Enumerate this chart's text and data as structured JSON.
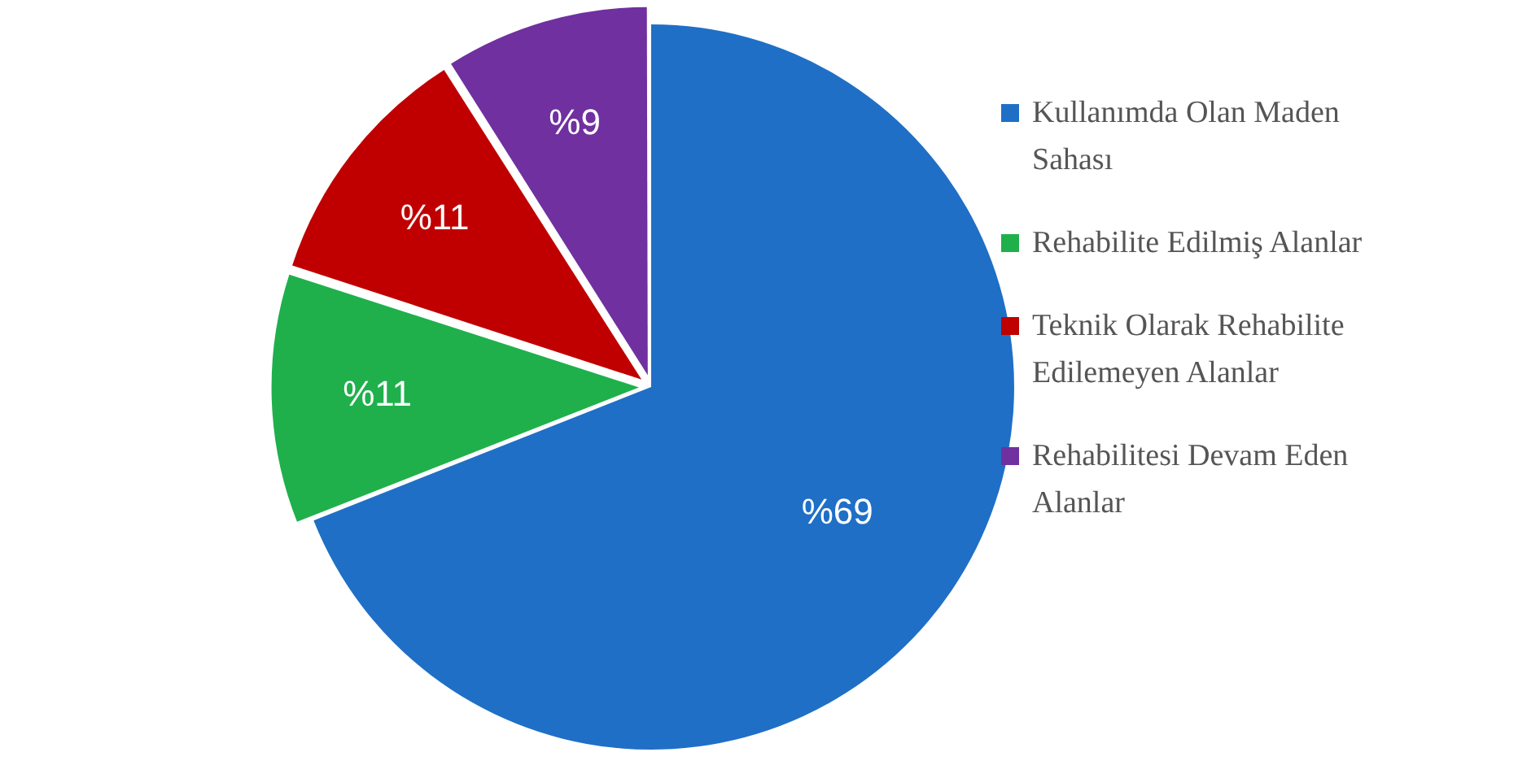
{
  "chart_data": {
    "type": "pie",
    "categories": [
      "Kullanımda Olan Maden Sahası",
      "Rehabilite Edilmiş Alanlar",
      "Teknik Olarak Rehabilite Edilemeyen Alanlar",
      "Rehabilitesi Devam Eden Alanlar"
    ],
    "values": [
      69,
      11,
      11,
      9
    ],
    "colors": [
      "#1f6fc6",
      "#1fb04c",
      "#c00000",
      "#7030a0"
    ],
    "value_labels": [
      "%69",
      "%11",
      "%11",
      "%9"
    ],
    "legend": "right"
  }
}
